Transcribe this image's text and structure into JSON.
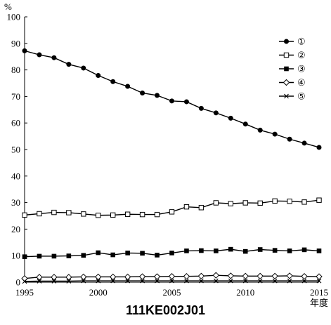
{
  "chart_data": {
    "type": "line",
    "unit_label": "%",
    "x_unit": "年度",
    "xlim": [
      1995,
      2015
    ],
    "ylim": [
      0,
      100
    ],
    "x_ticks": [
      1995,
      2000,
      2005,
      2010,
      2015
    ],
    "y_ticks": [
      0,
      10,
      20,
      30,
      40,
      50,
      60,
      70,
      80,
      90,
      100
    ],
    "legend_position": "top-right",
    "x": [
      1995,
      1996,
      1997,
      1998,
      1999,
      2000,
      2001,
      2002,
      2003,
      2004,
      2005,
      2006,
      2007,
      2008,
      2009,
      2010,
      2011,
      2012,
      2013,
      2014,
      2015
    ],
    "series": [
      {
        "name": "①",
        "marker": "filled-circle",
        "values": [
          87.2,
          85.7,
          84.6,
          82.1,
          80.7,
          77.9,
          75.6,
          73.8,
          71.3,
          70.4,
          68.3,
          68.0,
          65.5,
          63.8,
          61.8,
          59.6,
          57.3,
          55.8,
          53.9,
          52.4,
          50.8
        ]
      },
      {
        "name": "②",
        "marker": "open-square",
        "values": [
          25.3,
          25.8,
          26.3,
          26.2,
          25.7,
          25.2,
          25.3,
          25.6,
          25.5,
          25.5,
          26.5,
          28.4,
          28.1,
          29.9,
          29.6,
          29.9,
          29.8,
          30.6,
          30.5,
          30.2,
          30.9
        ]
      },
      {
        "name": "③",
        "marker": "filled-square",
        "values": [
          9.6,
          9.8,
          9.8,
          9.9,
          10.1,
          11.1,
          10.3,
          11.0,
          10.9,
          10.2,
          11.0,
          11.8,
          11.9,
          11.8,
          12.4,
          11.6,
          12.3,
          12.0,
          11.8,
          12.2,
          11.8
        ]
      },
      {
        "name": "④",
        "marker": "open-diamond",
        "values": [
          1.4,
          1.9,
          1.9,
          1.9,
          2.0,
          2.0,
          2.0,
          2.0,
          2.1,
          2.1,
          2.2,
          2.2,
          2.3,
          2.6,
          2.4,
          2.3,
          2.3,
          2.3,
          2.4,
          2.2,
          2.1
        ]
      },
      {
        "name": "⑤",
        "marker": "x",
        "values": [
          0.3,
          0.4,
          0.4,
          0.4,
          0.5,
          0.5,
          0.5,
          0.5,
          0.5,
          0.5,
          0.5,
          0.5,
          0.5,
          0.5,
          0.5,
          0.5,
          0.5,
          0.5,
          0.5,
          0.5,
          0.5
        ]
      }
    ]
  },
  "caption": "111KE002J01"
}
